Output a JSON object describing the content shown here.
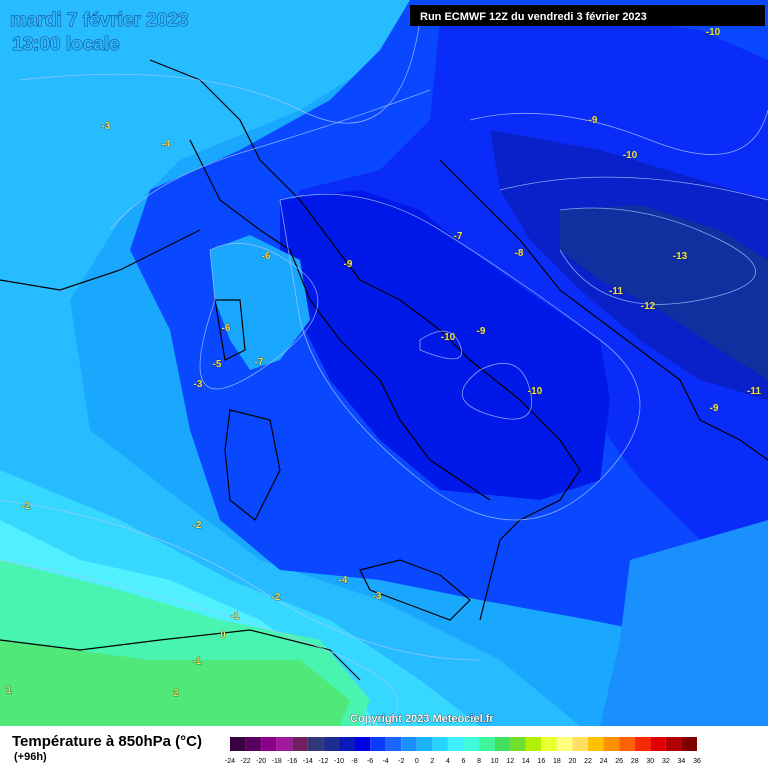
{
  "header": {
    "title": "mardi 7 février 2023",
    "subtitle": "13:00 locale",
    "run": "Run ECMWF 12Z du vendredi 3 février 2023"
  },
  "map": {
    "contour_labels": [
      -10,
      -9,
      -10,
      -13,
      -11,
      -12,
      -11,
      -9,
      -8,
      -7,
      -9,
      -6,
      -10,
      -9,
      -10,
      -6,
      -5,
      -3,
      -7,
      -4,
      -3,
      -2,
      -2,
      -4,
      -2,
      -3,
      -1,
      0,
      -1,
      1,
      2
    ]
  },
  "footer": {
    "title": "Température à 850hPa (°C)",
    "lead": "(+96h)",
    "copyright": "Copyright 2023 Meteociel.fr"
  },
  "legend": {
    "values": [
      -24,
      -22,
      -20,
      -18,
      -16,
      -14,
      -12,
      -10,
      -8,
      -6,
      -4,
      -2,
      0,
      2,
      4,
      6,
      8,
      10,
      12,
      14,
      16,
      18,
      20,
      22,
      24,
      26,
      28,
      30,
      32,
      34,
      36
    ],
    "colors": [
      "#3a0040",
      "#5a0060",
      "#8a008a",
      "#a01aa0",
      "#702060",
      "#303878",
      "#1c2c90",
      "#0a1cb8",
      "#0000e0",
      "#0a3cff",
      "#1a64ff",
      "#1a90ff",
      "#1ab4ff",
      "#28d4ff",
      "#40f0ff",
      "#40ffd8",
      "#40f4a0",
      "#40e060",
      "#70e030",
      "#b0f000",
      "#e8ff30",
      "#ffff80",
      "#ffe060",
      "#ffc000",
      "#ff9000",
      "#ff6000",
      "#ff2800",
      "#e00000",
      "#b00000",
      "#800000"
    ]
  }
}
